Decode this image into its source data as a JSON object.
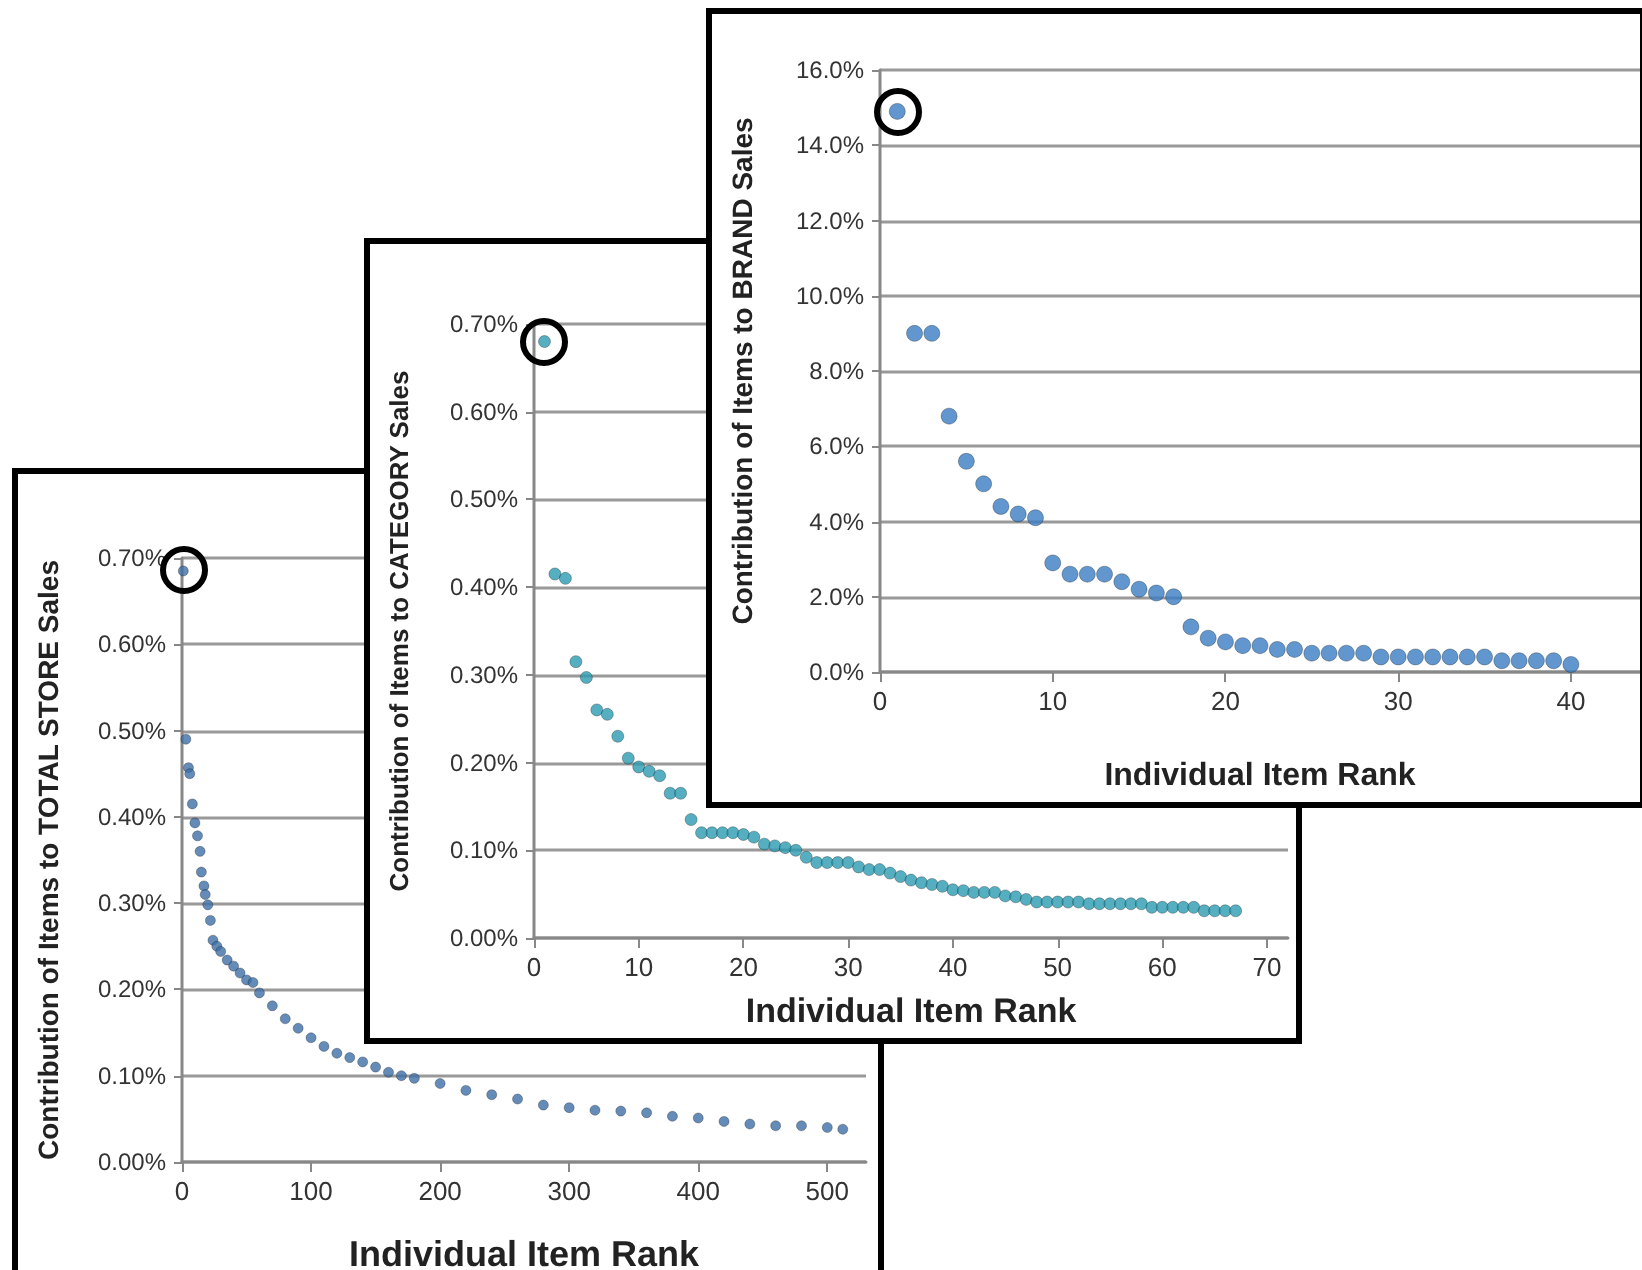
{
  "chart_data": [
    {
      "type": "scatter",
      "xlabel": "Individual Item Rank",
      "ylabel": "Contribution of Items to TOTAL STORE Sales",
      "marker": "circle",
      "grid": "y",
      "xlim": [
        0,
        530
      ],
      "xticks": [
        0,
        100,
        200,
        300,
        400,
        500
      ],
      "ylim": [
        0,
        0.7
      ],
      "yticks": [
        {
          "value": 0,
          "label": "0.00%"
        },
        {
          "value": 0.1,
          "label": "0.10%"
        },
        {
          "value": 0.2,
          "label": "0.20%"
        },
        {
          "value": 0.3,
          "label": "0.30%"
        },
        {
          "value": 0.4,
          "label": "0.40%"
        },
        {
          "value": 0.5,
          "label": "0.50%"
        },
        {
          "value": 0.6,
          "label": "0.60%"
        },
        {
          "value": 0.7,
          "label": "0.70%"
        }
      ],
      "x": [
        1,
        3,
        5,
        6,
        8,
        10,
        12,
        14,
        15,
        17,
        18,
        20,
        22,
        24,
        27,
        30,
        35,
        40,
        45,
        50,
        55,
        60,
        70,
        80,
        90,
        100,
        110,
        120,
        130,
        140,
        150,
        160,
        170,
        180,
        200,
        220,
        240,
        260,
        280,
        300,
        320,
        340,
        360,
        380,
        400,
        420,
        440,
        460,
        480,
        500,
        512
      ],
      "series": [
        {
          "color": "#3f6fa6",
          "values": [
            0.685,
            0.49,
            0.457,
            0.45,
            0.415,
            0.393,
            0.378,
            0.36,
            0.336,
            0.32,
            0.31,
            0.298,
            0.28,
            0.257,
            0.25,
            0.244,
            0.234,
            0.227,
            0.219,
            0.211,
            0.208,
            0.196,
            0.181,
            0.166,
            0.155,
            0.144,
            0.134,
            0.126,
            0.121,
            0.116,
            0.11,
            0.104,
            0.1,
            0.097,
            0.091,
            0.083,
            0.078,
            0.073,
            0.066,
            0.063,
            0.06,
            0.059,
            0.057,
            0.053,
            0.051,
            0.047,
            0.044,
            0.042,
            0.042,
            0.04,
            0.038
          ]
        }
      ]
    },
    {
      "type": "scatter",
      "xlabel": "Individual Item Rank",
      "ylabel": "Contribution of Items to CATEGORY Sales",
      "marker": "circle",
      "grid": "y",
      "xlim": [
        0,
        72
      ],
      "xticks": [
        0,
        10,
        20,
        30,
        40,
        50,
        60,
        70
      ],
      "ylim": [
        0,
        0.7
      ],
      "yticks": [
        {
          "value": 0,
          "label": "0.00%"
        },
        {
          "value": 0.1,
          "label": "0.10%"
        },
        {
          "value": 0.2,
          "label": "0.20%"
        },
        {
          "value": 0.3,
          "label": "0.30%"
        },
        {
          "value": 0.4,
          "label": "0.40%"
        },
        {
          "value": 0.5,
          "label": "0.50%"
        },
        {
          "value": 0.6,
          "label": "0.60%"
        },
        {
          "value": 0.7,
          "label": "0.70%"
        }
      ],
      "x": [
        1,
        2,
        3,
        4,
        5,
        6,
        7,
        8,
        9,
        10,
        11,
        12,
        13,
        14,
        15,
        16,
        17,
        18,
        19,
        20,
        21,
        22,
        23,
        24,
        25,
        26,
        27,
        28,
        29,
        30,
        31,
        32,
        33,
        34,
        35,
        36,
        37,
        38,
        39,
        40,
        41,
        42,
        43,
        44,
        45,
        46,
        47,
        48,
        49,
        50,
        51,
        52,
        53,
        54,
        55,
        56,
        57,
        58,
        59,
        60,
        61,
        62,
        63,
        64,
        65,
        66,
        67
      ],
      "series": [
        {
          "color": "#2a9bb2",
          "values": [
            0.68,
            0.415,
            0.41,
            0.315,
            0.297,
            0.26,
            0.255,
            0.23,
            0.205,
            0.195,
            0.19,
            0.185,
            0.165,
            0.165,
            0.135,
            0.12,
            0.12,
            0.12,
            0.12,
            0.118,
            0.115,
            0.107,
            0.105,
            0.103,
            0.1,
            0.092,
            0.086,
            0.086,
            0.086,
            0.086,
            0.081,
            0.078,
            0.078,
            0.074,
            0.07,
            0.066,
            0.063,
            0.061,
            0.059,
            0.055,
            0.054,
            0.052,
            0.052,
            0.052,
            0.048,
            0.047,
            0.044,
            0.041,
            0.041,
            0.041,
            0.041,
            0.041,
            0.039,
            0.039,
            0.039,
            0.039,
            0.039,
            0.039,
            0.035,
            0.035,
            0.035,
            0.035,
            0.035,
            0.031,
            0.031,
            0.031,
            0.031
          ]
        }
      ]
    },
    {
      "type": "scatter",
      "xlabel": "Individual Item Rank",
      "ylabel": "Contribution of Items to BRAND Sales",
      "marker": "circle",
      "grid": "y",
      "xlim": [
        0,
        44
      ],
      "xticks": [
        0,
        10,
        20,
        30,
        40
      ],
      "ylim": [
        0,
        16
      ],
      "yticks": [
        {
          "value": 0,
          "label": "0.0%"
        },
        {
          "value": 2,
          "label": "2.0%"
        },
        {
          "value": 4,
          "label": "4.0%"
        },
        {
          "value": 6,
          "label": "6.0%"
        },
        {
          "value": 8,
          "label": "8.0%"
        },
        {
          "value": 10,
          "label": "10.0%"
        },
        {
          "value": 12,
          "label": "12.0%"
        },
        {
          "value": 14,
          "label": "14.0%"
        },
        {
          "value": 16,
          "label": "16.0%"
        }
      ],
      "x": [
        1,
        2,
        3,
        4,
        5,
        6,
        7,
        8,
        9,
        10,
        11,
        12,
        13,
        14,
        15,
        16,
        17,
        18,
        19,
        20,
        21,
        22,
        23,
        24,
        25,
        26,
        27,
        28,
        29,
        30,
        31,
        32,
        33,
        34,
        35,
        36,
        37,
        38,
        39,
        40
      ],
      "series": [
        {
          "color": "#3a7dc2",
          "values": [
            14.9,
            9.0,
            9.0,
            6.8,
            5.6,
            5.0,
            4.4,
            4.2,
            4.1,
            2.9,
            2.6,
            2.6,
            2.6,
            2.4,
            2.2,
            2.1,
            2.0,
            1.2,
            0.9,
            0.8,
            0.7,
            0.7,
            0.6,
            0.6,
            0.5,
            0.5,
            0.5,
            0.5,
            0.4,
            0.4,
            0.4,
            0.4,
            0.4,
            0.4,
            0.4,
            0.3,
            0.3,
            0.3,
            0.3,
            0.2
          ]
        }
      ]
    }
  ]
}
